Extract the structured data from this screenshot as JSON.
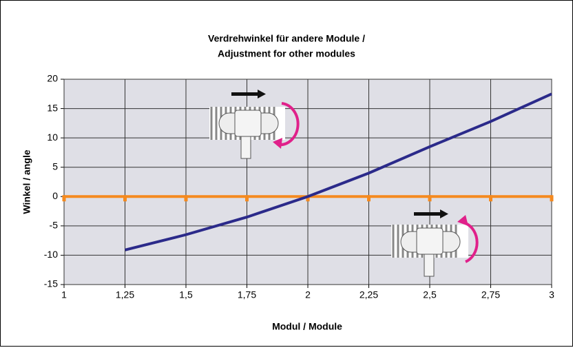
{
  "chart_data": {
    "type": "line",
    "title": [
      "Verdrehwinkel für andere Module /",
      "Adjustment for other modules"
    ],
    "x_label": "Modul / Module",
    "y_label": "Winkel / angle",
    "series": [
      {
        "color": "#2b2a8a",
        "x": [
          1.25,
          1.5,
          1.75,
          2,
          2.25,
          2.5,
          2.75,
          3
        ],
        "values": [
          -9.1,
          -6.5,
          -3.5,
          0,
          4.0,
          8.5,
          12.8,
          17.5
        ],
        "markers": false
      },
      {
        "color": "#f58a1f",
        "x": [
          1,
          1.25,
          1.5,
          1.75,
          2,
          2.25,
          2.5,
          2.75,
          3
        ],
        "values": [
          0,
          0,
          0,
          0,
          0,
          0,
          0,
          0,
          0
        ],
        "markers": true
      }
    ],
    "xlim": [
      1,
      3
    ],
    "ylim": [
      -15,
      20
    ],
    "xticks": [
      1,
      {
        "value": 1.25,
        "label": "1,25"
      },
      {
        "value": 1.5,
        "label": "1,5"
      },
      {
        "value": 1.75,
        "label": "1,75"
      },
      2,
      {
        "value": 2.25,
        "label": "2,25"
      },
      {
        "value": 2.5,
        "label": "2,5"
      },
      {
        "value": 2.75,
        "label": "2,75"
      },
      3
    ],
    "yticks": [
      -15,
      -10,
      -5,
      0,
      5,
      10,
      15,
      20
    ],
    "grid": true
  }
}
